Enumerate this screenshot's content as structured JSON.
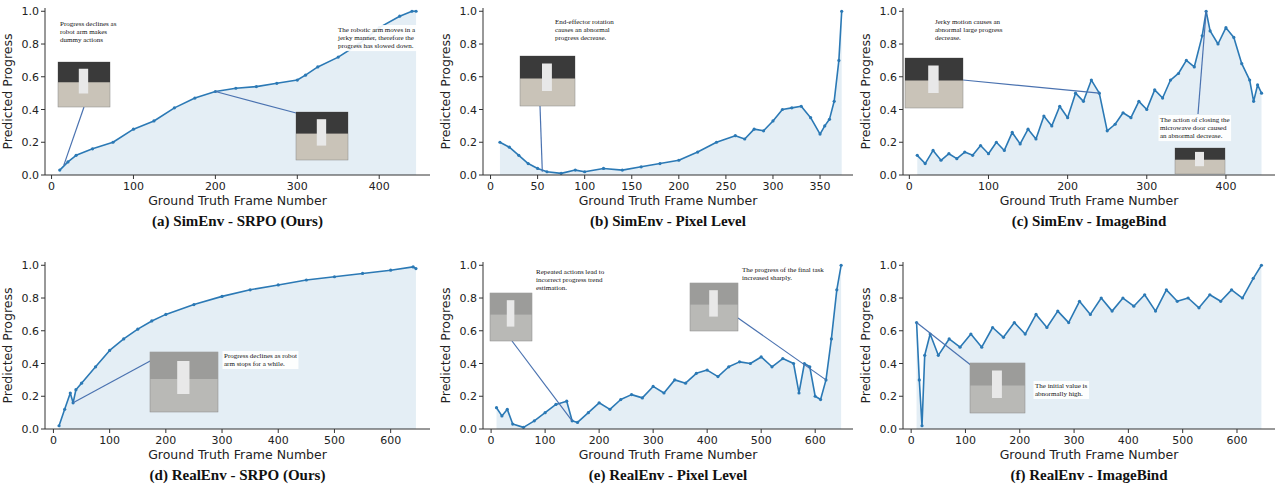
{
  "chart_data": [
    {
      "type": "line",
      "title": "(a) SimEnv - SRPO (Ours)",
      "x_label": "Ground Truth Frame Number",
      "y_label": "Predicted Progress",
      "color": "#2b79b5",
      "marker": "o",
      "grid": false,
      "xlim": [
        -8,
        462
      ],
      "xticks": [
        0,
        100,
        200,
        300,
        400
      ],
      "ylim": [
        0,
        1.02
      ],
      "yticks": [
        {
          "value": 0,
          "label": "0.0"
        },
        0.2,
        0.4,
        0.6,
        0.8,
        {
          "value": 1,
          "label": "1.0"
        }
      ],
      "x": [
        10,
        20,
        30,
        50,
        75,
        100,
        125,
        150,
        175,
        200,
        225,
        250,
        275,
        300,
        310,
        325,
        350,
        375,
        400,
        425,
        440,
        445
      ],
      "values": [
        0.03,
        0.08,
        0.12,
        0.16,
        0.2,
        0.28,
        0.33,
        0.41,
        0.47,
        0.51,
        0.53,
        0.54,
        0.56,
        0.58,
        0.61,
        0.66,
        0.72,
        0.8,
        0.9,
        0.97,
        1.0,
        1.0
      ],
      "annotations": [
        {
          "text": "Progress declines as robot arm makes dummy actions",
          "x": 15,
          "y": 0.06
        },
        {
          "text": "The robotic arm moves in a jerky manner, therefore the progress has slowed down.",
          "x": 200,
          "y": 0.51
        }
      ]
    },
    {
      "type": "line",
      "title": "(b) SimEnv - Pixel Level",
      "x_label": "Ground Truth Frame Number",
      "y_label": "Predicted Progress",
      "color": "#2b79b5",
      "marker": "o",
      "grid": false,
      "xlim": [
        -8,
        385
      ],
      "xticks": [
        0,
        50,
        100,
        150,
        200,
        250,
        300,
        350
      ],
      "ylim": [
        0,
        1.02
      ],
      "yticks": [
        {
          "value": 0,
          "label": "0.0"
        },
        0.2,
        0.4,
        0.6,
        0.8,
        {
          "value": 1,
          "label": "1.0"
        }
      ],
      "x": [
        10,
        20,
        30,
        40,
        50,
        60,
        75,
        90,
        100,
        120,
        140,
        160,
        180,
        200,
        220,
        240,
        260,
        270,
        280,
        290,
        300,
        310,
        320,
        330,
        340,
        350,
        355,
        360,
        365,
        370,
        373
      ],
      "values": [
        0.2,
        0.17,
        0.12,
        0.07,
        0.04,
        0.02,
        0.01,
        0.03,
        0.02,
        0.04,
        0.03,
        0.05,
        0.07,
        0.09,
        0.14,
        0.2,
        0.24,
        0.22,
        0.28,
        0.27,
        0.33,
        0.4,
        0.41,
        0.42,
        0.35,
        0.25,
        0.3,
        0.34,
        0.45,
        0.7,
        1.0
      ],
      "annotations": [
        {
          "text": "End-effector rotation causes an abnormal progress decrease.",
          "x": 55,
          "y": 0.02
        }
      ]
    },
    {
      "type": "line",
      "title": "(c) SimEnv - ImageBind",
      "x_label": "Ground Truth Frame Number",
      "y_label": "Predicted Progress",
      "color": "#2b79b5",
      "marker": "o",
      "grid": false,
      "xlim": [
        -8,
        462
      ],
      "xticks": [
        0,
        100,
        200,
        300,
        400
      ],
      "ylim": [
        0,
        1.02
      ],
      "yticks": [
        {
          "value": 0,
          "label": "0.0"
        },
        0.2,
        0.4,
        0.6,
        0.8,
        {
          "value": 1,
          "label": "1.0"
        }
      ],
      "x": [
        10,
        20,
        30,
        40,
        50,
        60,
        70,
        80,
        90,
        100,
        110,
        120,
        130,
        140,
        150,
        160,
        170,
        180,
        190,
        200,
        210,
        220,
        230,
        240,
        250,
        260,
        270,
        280,
        290,
        300,
        310,
        320,
        330,
        340,
        350,
        360,
        370,
        375,
        380,
        390,
        400,
        410,
        420,
        430,
        435,
        440,
        445
      ],
      "values": [
        0.12,
        0.07,
        0.15,
        0.09,
        0.13,
        0.1,
        0.14,
        0.12,
        0.18,
        0.13,
        0.2,
        0.15,
        0.26,
        0.19,
        0.28,
        0.22,
        0.36,
        0.3,
        0.42,
        0.35,
        0.5,
        0.45,
        0.58,
        0.5,
        0.27,
        0.31,
        0.38,
        0.35,
        0.45,
        0.4,
        0.52,
        0.47,
        0.58,
        0.62,
        0.7,
        0.66,
        0.85,
        1.0,
        0.88,
        0.8,
        0.9,
        0.84,
        0.68,
        0.58,
        0.45,
        0.55,
        0.5
      ],
      "annotations": [
        {
          "text": "Jerky motion causes an abnormal large progress decrease.",
          "x": 240,
          "y": 0.5
        },
        {
          "text": "The action of closing the microwave door caused an abnormal decrease.",
          "x": 375,
          "y": 1.0
        }
      ]
    },
    {
      "type": "line",
      "title": "(d) RealEnv - SRPO (Ours)",
      "x_label": "Ground Truth Frame Number",
      "y_label": "Predicted Progress",
      "color": "#2b79b5",
      "marker": "o",
      "grid": false,
      "xlim": [
        -15,
        670
      ],
      "xticks": [
        0,
        100,
        200,
        300,
        400,
        500,
        600
      ],
      "ylim": [
        0,
        1.02
      ],
      "yticks": [
        {
          "value": 0,
          "label": "0.0"
        },
        0.2,
        0.4,
        0.6,
        0.8,
        {
          "value": 1,
          "label": "1.0"
        }
      ],
      "x": [
        10,
        20,
        30,
        35,
        40,
        50,
        75,
        100,
        125,
        150,
        175,
        200,
        250,
        300,
        350,
        400,
        450,
        500,
        550,
        600,
        640,
        645
      ],
      "values": [
        0.02,
        0.12,
        0.22,
        0.16,
        0.24,
        0.28,
        0.38,
        0.48,
        0.55,
        0.61,
        0.66,
        0.7,
        0.76,
        0.81,
        0.85,
        0.88,
        0.91,
        0.93,
        0.95,
        0.97,
        0.99,
        0.98
      ],
      "annotations": [
        {
          "text": "Progress declines as robot arm stops for a while.",
          "x": 35,
          "y": 0.16
        }
      ]
    },
    {
      "type": "line",
      "title": "(e) RealEnv - Pixel Level",
      "x_label": "Ground Truth Frame Number",
      "y_label": "Predicted Progress",
      "color": "#2b79b5",
      "marker": "o",
      "grid": false,
      "xlim": [
        -15,
        670
      ],
      "xticks": [
        0,
        100,
        200,
        300,
        400,
        500,
        600
      ],
      "ylim": [
        0,
        1.02
      ],
      "yticks": [
        {
          "value": 0,
          "label": "0.0"
        },
        0.2,
        0.4,
        0.6,
        0.8,
        {
          "value": 1,
          "label": "1.0"
        }
      ],
      "x": [
        10,
        20,
        30,
        40,
        60,
        80,
        100,
        120,
        140,
        150,
        160,
        180,
        200,
        220,
        240,
        260,
        280,
        300,
        320,
        340,
        360,
        380,
        400,
        420,
        440,
        460,
        480,
        500,
        520,
        540,
        560,
        570,
        580,
        590,
        600,
        610,
        620,
        630,
        640,
        648
      ],
      "values": [
        0.13,
        0.08,
        0.12,
        0.03,
        0.01,
        0.05,
        0.1,
        0.15,
        0.17,
        0.05,
        0.04,
        0.1,
        0.16,
        0.12,
        0.18,
        0.21,
        0.19,
        0.26,
        0.22,
        0.3,
        0.28,
        0.34,
        0.36,
        0.32,
        0.38,
        0.41,
        0.4,
        0.44,
        0.38,
        0.43,
        0.4,
        0.22,
        0.4,
        0.38,
        0.2,
        0.18,
        0.3,
        0.55,
        0.85,
        1.0
      ],
      "annotations": [
        {
          "text": "Repeated actions lead to incorrect progress trend estimation.",
          "x": 150,
          "y": 0.05
        },
        {
          "text": "The progress of the final task increased sharply.",
          "x": 620,
          "y": 0.3
        }
      ]
    },
    {
      "type": "line",
      "title": "(f) RealEnv - ImageBind",
      "x_label": "Ground Truth Frame Number",
      "y_label": "Predicted Progress",
      "color": "#2b79b5",
      "marker": "o",
      "grid": false,
      "xlim": [
        -15,
        670
      ],
      "xticks": [
        0,
        100,
        200,
        300,
        400,
        500,
        600
      ],
      "ylim": [
        0,
        1.02
      ],
      "yticks": [
        {
          "value": 0,
          "label": "0.0"
        },
        0.2,
        0.4,
        0.6,
        0.8,
        {
          "value": 1,
          "label": "1.0"
        }
      ],
      "x": [
        10,
        15,
        20,
        25,
        35,
        50,
        70,
        90,
        110,
        130,
        150,
        170,
        190,
        210,
        230,
        250,
        270,
        290,
        310,
        330,
        350,
        370,
        390,
        410,
        430,
        450,
        470,
        490,
        510,
        530,
        550,
        570,
        590,
        610,
        630,
        645
      ],
      "values": [
        0.65,
        0.3,
        0.02,
        0.45,
        0.58,
        0.45,
        0.55,
        0.5,
        0.58,
        0.5,
        0.62,
        0.56,
        0.65,
        0.58,
        0.7,
        0.62,
        0.72,
        0.65,
        0.78,
        0.7,
        0.8,
        0.72,
        0.8,
        0.75,
        0.82,
        0.72,
        0.85,
        0.78,
        0.8,
        0.74,
        0.82,
        0.78,
        0.85,
        0.8,
        0.92,
        1.0
      ],
      "annotations": [
        {
          "text": "The initial value is abnormally high.",
          "x": 10,
          "y": 0.65
        }
      ]
    }
  ]
}
